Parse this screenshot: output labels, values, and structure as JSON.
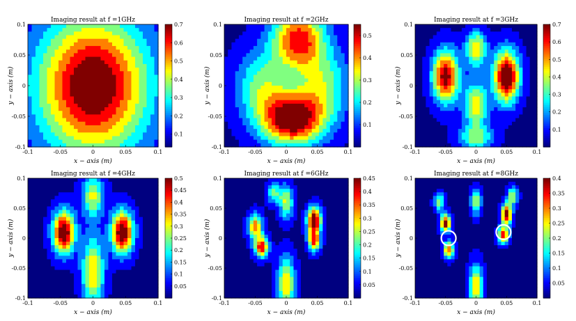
{
  "chart_data": [
    {
      "type": "heatmap",
      "title": "Imaging result at f =1GHz",
      "xlabel": "x − axis (m)",
      "ylabel": "y − axis (m)",
      "xlim": [
        -0.1,
        0.1
      ],
      "ylim": [
        -0.1,
        0.1
      ],
      "xticks": [
        "-0.1",
        "-0.05",
        "0",
        "0.05",
        "0.1"
      ],
      "yticks": [
        "0.1",
        "0.05",
        "0",
        "-0.05",
        "-0.1"
      ],
      "colorbar": {
        "min": 0.03,
        "max": 0.7,
        "ticks": [
          "0.7",
          "0.6",
          "0.5",
          "0.4",
          "0.3",
          "0.2",
          "0.1"
        ]
      },
      "peaks": [
        {
          "x": 0.0,
          "y": 0.0,
          "amp": 0.67,
          "sx": 0.06,
          "sy": 0.08
        }
      ],
      "circles": []
    },
    {
      "type": "heatmap",
      "title": "Imaging result at f =2GHz",
      "xlabel": "x − axis (m)",
      "ylabel": "y − axis (m)",
      "xlim": [
        -0.1,
        0.1
      ],
      "ylim": [
        -0.1,
        0.1
      ],
      "xticks": [
        "-0.1",
        "-0.05",
        "0",
        "0.05",
        "0.1"
      ],
      "yticks": [
        "0.1",
        "0.05",
        "0",
        "-0.05",
        "-0.1"
      ],
      "colorbar": {
        "min": 0.0,
        "max": 0.55,
        "ticks": [
          "0.5",
          "0.4",
          "0.3",
          "0.2",
          "0.1"
        ]
      },
      "peaks": [
        {
          "x": 0.01,
          "y": -0.055,
          "amp": 0.52,
          "sx": 0.035,
          "sy": 0.03
        },
        {
          "x": 0.02,
          "y": 0.075,
          "amp": 0.42,
          "sx": 0.03,
          "sy": 0.035
        },
        {
          "x": -0.04,
          "y": 0.0,
          "amp": 0.22,
          "sx": 0.03,
          "sy": 0.04
        },
        {
          "x": 0.06,
          "y": 0.0,
          "amp": 0.22,
          "sx": 0.03,
          "sy": 0.04
        }
      ],
      "circles": []
    },
    {
      "type": "heatmap",
      "title": "Imaging result at f =3GHz",
      "xlabel": "x − axis (m)",
      "ylabel": "y − axis (m)",
      "xlim": [
        -0.1,
        0.1
      ],
      "ylim": [
        -0.1,
        0.1
      ],
      "xticks": [
        "-0.1",
        "-0.05",
        "0",
        "0.05",
        "0.1"
      ],
      "yticks": [
        "0.1",
        "0.05",
        "0",
        "-0.05",
        "-0.1"
      ],
      "colorbar": {
        "min": 0.0,
        "max": 0.7,
        "ticks": [
          "0.7",
          "0.6",
          "0.5",
          "0.4",
          "0.3",
          "0.2",
          "0.1"
        ]
      },
      "peaks": [
        {
          "x": -0.05,
          "y": 0.015,
          "amp": 0.62,
          "sx": 0.015,
          "sy": 0.03
        },
        {
          "x": 0.05,
          "y": 0.015,
          "amp": 0.68,
          "sx": 0.015,
          "sy": 0.03
        },
        {
          "x": 0.0,
          "y": 0.06,
          "amp": 0.42,
          "sx": 0.012,
          "sy": 0.02
        },
        {
          "x": 0.0,
          "y": -0.03,
          "amp": 0.4,
          "sx": 0.014,
          "sy": 0.025
        },
        {
          "x": 0.0,
          "y": -0.085,
          "amp": 0.3,
          "sx": 0.02,
          "sy": 0.015
        }
      ],
      "circles": []
    },
    {
      "type": "heatmap",
      "title": "Imaging result at f =4GHz",
      "xlabel": "x − axis (m)",
      "ylabel": "y − axis (m)",
      "xlim": [
        -0.1,
        0.1
      ],
      "ylim": [
        -0.1,
        0.1
      ],
      "xticks": [
        "-0.1",
        "-0.05",
        "0",
        "0.05",
        "0.1"
      ],
      "yticks": [
        "0.1",
        "0.05",
        "0",
        "-0.05",
        "-0.1"
      ],
      "colorbar": {
        "min": 0.0,
        "max": 0.5,
        "ticks": [
          "0.5",
          "0.45",
          "0.4",
          "0.35",
          "0.3",
          "0.25",
          "0.2",
          "0.15",
          "0.1",
          "0.05"
        ]
      },
      "peaks": [
        {
          "x": -0.045,
          "y": 0.01,
          "amp": 0.48,
          "sx": 0.012,
          "sy": 0.025
        },
        {
          "x": 0.045,
          "y": 0.01,
          "amp": 0.48,
          "sx": 0.012,
          "sy": 0.025
        },
        {
          "x": 0.0,
          "y": -0.055,
          "amp": 0.3,
          "sx": 0.012,
          "sy": 0.04
        },
        {
          "x": 0.0,
          "y": 0.07,
          "amp": 0.25,
          "sx": 0.012,
          "sy": 0.025
        }
      ],
      "circles": []
    },
    {
      "type": "heatmap",
      "title": "Imaging result at f =6GHz",
      "xlabel": "x − axis (m)",
      "ylabel": "y − axis (m)",
      "xlim": [
        -0.1,
        0.1
      ],
      "ylim": [
        -0.1,
        0.1
      ],
      "xticks": [
        "-0.1",
        "-0.05",
        "0",
        "0.05",
        "0.1"
      ],
      "yticks": [
        "0.1",
        "0.05",
        "0",
        "-0.05",
        "-0.1"
      ],
      "colorbar": {
        "min": 0.0,
        "max": 0.45,
        "ticks": [
          "0.45",
          "0.4",
          "0.35",
          "0.3",
          "0.25",
          "0.2",
          "0.15",
          "0.1",
          "0.05"
        ]
      },
      "peaks": [
        {
          "x": 0.045,
          "y": 0.03,
          "amp": 0.43,
          "sx": 0.008,
          "sy": 0.015
        },
        {
          "x": -0.04,
          "y": -0.015,
          "amp": 0.36,
          "sx": 0.008,
          "sy": 0.012
        },
        {
          "x": -0.05,
          "y": 0.02,
          "amp": 0.3,
          "sx": 0.008,
          "sy": 0.015
        },
        {
          "x": 0.045,
          "y": -0.005,
          "amp": 0.32,
          "sx": 0.007,
          "sy": 0.012
        },
        {
          "x": 0.0,
          "y": -0.075,
          "amp": 0.26,
          "sx": 0.01,
          "sy": 0.03
        },
        {
          "x": 0.0,
          "y": 0.06,
          "amp": 0.22,
          "sx": 0.008,
          "sy": 0.02
        },
        {
          "x": -0.02,
          "y": 0.075,
          "amp": 0.18,
          "sx": 0.008,
          "sy": 0.012
        }
      ],
      "circles": []
    },
    {
      "type": "heatmap",
      "title": "Imaging result at f =8GHz",
      "xlabel": "x − axis (m)",
      "ylabel": "y − axis (m)",
      "xlim": [
        -0.1,
        0.1
      ],
      "ylim": [
        -0.1,
        0.1
      ],
      "xticks": [
        "-0.1",
        "-0.05",
        "0",
        "0.05",
        "0.1"
      ],
      "yticks": [
        "0.1",
        "0.05",
        "0",
        "-0.05",
        "-0.1"
      ],
      "colorbar": {
        "min": 0.0,
        "max": 0.4,
        "ticks": [
          "0.4",
          "0.35",
          "0.3",
          "0.25",
          "0.2",
          "0.15",
          "0.1",
          "0.05"
        ]
      },
      "peaks": [
        {
          "x": 0.05,
          "y": 0.04,
          "amp": 0.38,
          "sx": 0.006,
          "sy": 0.012
        },
        {
          "x": -0.05,
          "y": 0.025,
          "amp": 0.36,
          "sx": 0.006,
          "sy": 0.01
        },
        {
          "x": 0.045,
          "y": 0.005,
          "amp": 0.3,
          "sx": 0.006,
          "sy": 0.01
        },
        {
          "x": -0.045,
          "y": -0.02,
          "amp": 0.28,
          "sx": 0.006,
          "sy": 0.01
        },
        {
          "x": 0.0,
          "y": -0.08,
          "amp": 0.24,
          "sx": 0.008,
          "sy": 0.025
        },
        {
          "x": 0.0,
          "y": 0.06,
          "amp": 0.2,
          "sx": 0.006,
          "sy": 0.015
        },
        {
          "x": 0.06,
          "y": 0.07,
          "amp": 0.2,
          "sx": 0.006,
          "sy": 0.01
        },
        {
          "x": -0.06,
          "y": 0.06,
          "amp": 0.18,
          "sx": 0.006,
          "sy": 0.01
        }
      ],
      "circles": [
        {
          "x": -0.045,
          "y": 0.0,
          "r": 0.012
        },
        {
          "x": 0.045,
          "y": 0.01,
          "r": 0.012
        }
      ]
    }
  ],
  "colors": {
    "colormap": "jet",
    "circle_color": "#ffffff"
  }
}
